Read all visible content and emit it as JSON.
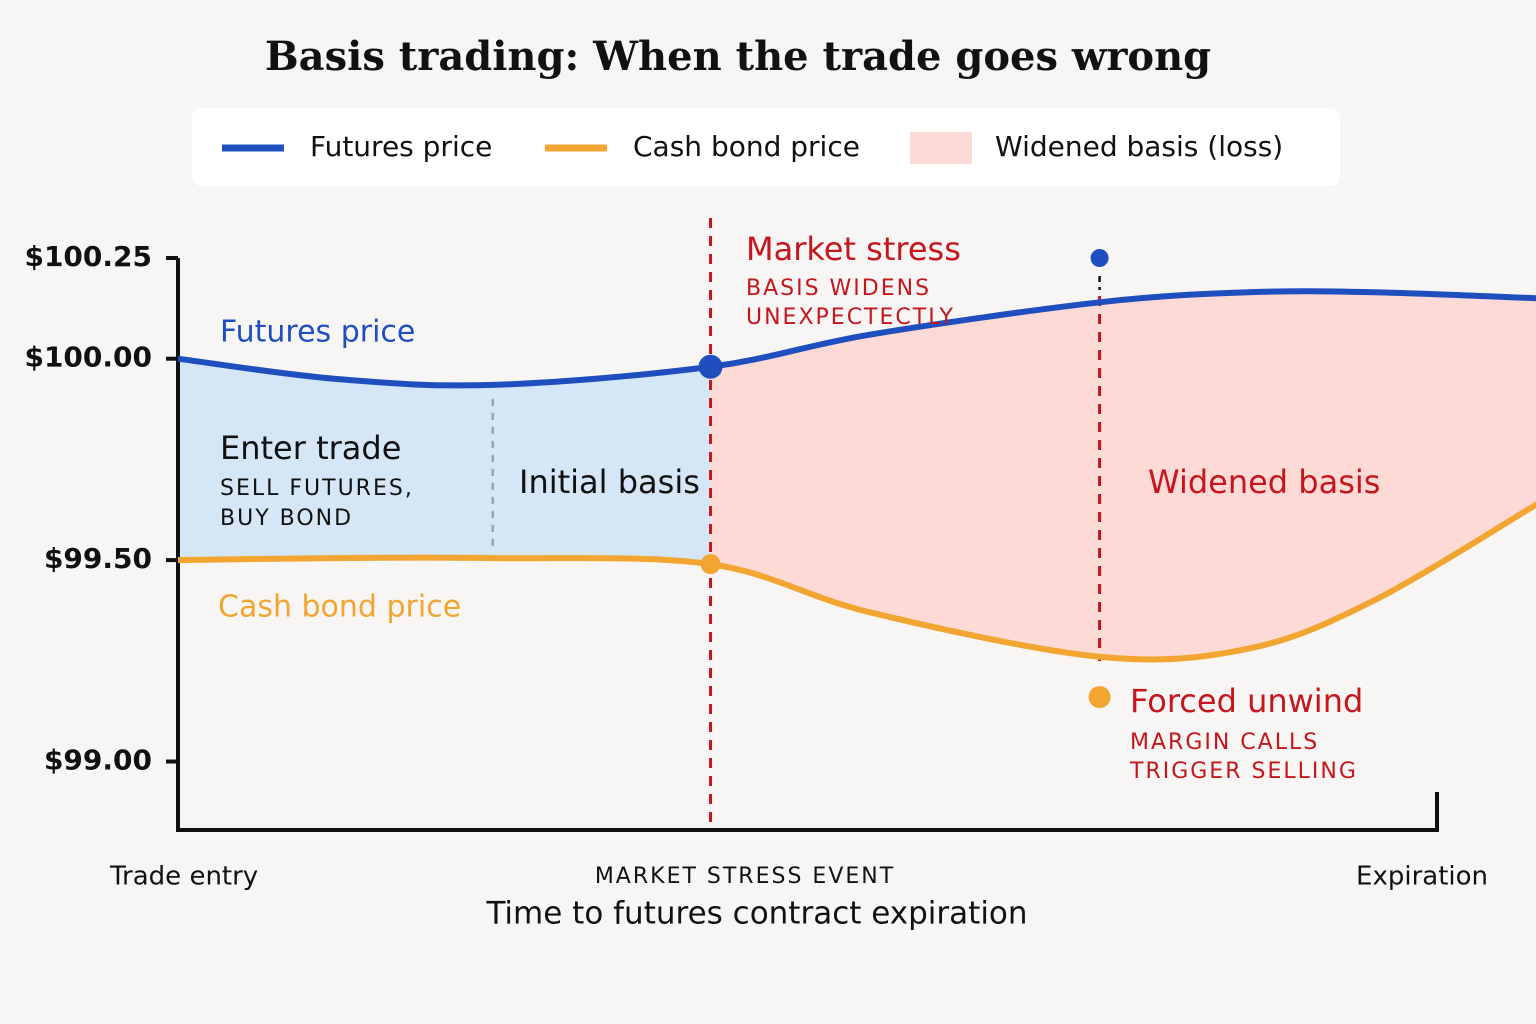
{
  "chart_data": {
    "type": "line",
    "title": "Basis trading: When the trade goes wrong",
    "x": [
      0,
      12.5,
      25,
      42.3,
      55,
      73.2,
      85,
      95,
      108
    ],
    "xlim": [
      0,
      100
    ],
    "ylim": [
      98.83,
      100.25
    ],
    "yticks": [
      {
        "value": 100.25,
        "label": "$100.25"
      },
      {
        "value": 100.0,
        "label": "$100.00"
      },
      {
        "value": 99.5,
        "label": "$99.50"
      },
      {
        "value": 99.0,
        "label": "$99.00"
      }
    ],
    "series": [
      {
        "name": "Futures price",
        "color": "#1f4fbf",
        "values": [
          100.0,
          99.95,
          99.935,
          99.98,
          100.06,
          100.14,
          100.165,
          100.165,
          100.15
        ]
      },
      {
        "name": "Cash bond price",
        "color": "#f2a531",
        "values": [
          99.5,
          99.505,
          99.505,
          99.49,
          99.37,
          99.26,
          99.28,
          99.4,
          99.64
        ]
      }
    ],
    "fill_legend": {
      "name": "Widened basis (loss)",
      "color": "#fddad6"
    },
    "initial_fill_color": "#d5e6f6",
    "events": [
      42.3,
      73.2
    ],
    "markers": [
      {
        "x": 73.2,
        "y": 100.25,
        "color": "#1f4fbf"
      },
      {
        "x": 73.2,
        "y": 99.16,
        "color": "#f2a531"
      }
    ],
    "x_labels": {
      "start": "Trade entry",
      "event": "MARKET STRESS EVENT",
      "end": "Expiration"
    },
    "xlabel": "Time to futures contract expiration",
    "annotations": {
      "futures": "Futures price",
      "cash": "Cash bond price",
      "enter": "Enter trade",
      "enter_sub1": "SELL FUTURES,",
      "enter_sub2": "BUY BOND",
      "initial": "Initial basis",
      "stress": "Market stress",
      "stress_sub1": "BASIS WIDENS",
      "stress_sub2": "UNEXPECTECTLY",
      "widened": "Widened basis",
      "unwind": "Forced unwind",
      "unwind_sub1": "MARGIN CALLS",
      "unwind_sub2": "TRIGGER SELLING"
    }
  }
}
